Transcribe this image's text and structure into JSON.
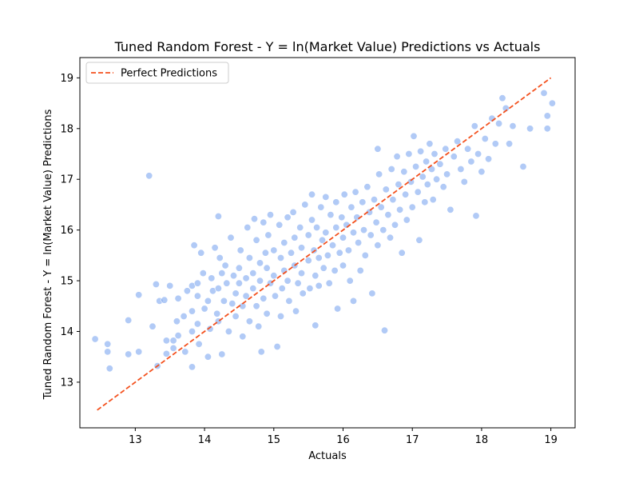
{
  "chart_data": {
    "type": "scatter",
    "title": "Tuned Random Forest - Y = ln(Market Value) Predictions vs Actuals",
    "xlabel": "Actuals",
    "ylabel": "Tuned Random Forest - Y = ln(Market Value) Predictions",
    "xlim": [
      12.2,
      19.35
    ],
    "ylim": [
      12.1,
      19.4
    ],
    "xticks": [
      13,
      14,
      15,
      16,
      17,
      18,
      19
    ],
    "yticks": [
      13,
      14,
      15,
      16,
      17,
      18,
      19
    ],
    "grid": false,
    "legend": {
      "position": "top-left",
      "entries": [
        "Perfect Predictions"
      ]
    },
    "colors": {
      "points": "#6495ED",
      "reference_line": "#F4511E"
    },
    "reference_line": {
      "name": "Perfect Predictions",
      "style": "dashed",
      "x": [
        12.45,
        19.0
      ],
      "y": [
        12.45,
        19.0
      ]
    },
    "series": [
      {
        "name": "",
        "points": [
          [
            12.42,
            13.85
          ],
          [
            12.6,
            13.75
          ],
          [
            12.6,
            13.6
          ],
          [
            12.63,
            13.27
          ],
          [
            12.9,
            14.22
          ],
          [
            12.9,
            13.55
          ],
          [
            13.05,
            14.72
          ],
          [
            13.05,
            13.6
          ],
          [
            13.2,
            17.07
          ],
          [
            13.25,
            14.1
          ],
          [
            13.3,
            14.93
          ],
          [
            13.32,
            13.32
          ],
          [
            13.35,
            14.6
          ],
          [
            13.42,
            14.62
          ],
          [
            13.45,
            13.82
          ],
          [
            13.45,
            13.56
          ],
          [
            13.5,
            14.9
          ],
          [
            13.55,
            13.82
          ],
          [
            13.55,
            13.67
          ],
          [
            13.6,
            14.2
          ],
          [
            13.62,
            14.65
          ],
          [
            13.62,
            13.92
          ],
          [
            13.7,
            14.3
          ],
          [
            13.72,
            13.6
          ],
          [
            13.75,
            14.8
          ],
          [
            13.82,
            14.9
          ],
          [
            13.82,
            14.4
          ],
          [
            13.82,
            14.0
          ],
          [
            13.82,
            13.3
          ],
          [
            13.85,
            15.7
          ],
          [
            13.9,
            14.95
          ],
          [
            13.9,
            14.7
          ],
          [
            13.9,
            14.15
          ],
          [
            13.92,
            13.75
          ],
          [
            13.95,
            15.55
          ],
          [
            13.98,
            15.15
          ],
          [
            14.0,
            14.45
          ],
          [
            14.05,
            14.6
          ],
          [
            14.05,
            13.5
          ],
          [
            14.08,
            14.05
          ],
          [
            14.1,
            15.05
          ],
          [
            14.12,
            14.8
          ],
          [
            14.15,
            15.65
          ],
          [
            14.18,
            14.35
          ],
          [
            14.2,
            16.27
          ],
          [
            14.2,
            14.85
          ],
          [
            14.2,
            14.2
          ],
          [
            14.22,
            15.45
          ],
          [
            14.25,
            15.15
          ],
          [
            14.25,
            13.55
          ],
          [
            14.28,
            14.6
          ],
          [
            14.3,
            15.3
          ],
          [
            14.32,
            14.95
          ],
          [
            14.35,
            14.0
          ],
          [
            14.38,
            15.85
          ],
          [
            14.4,
            14.55
          ],
          [
            14.42,
            15.1
          ],
          [
            14.45,
            14.75
          ],
          [
            14.45,
            14.3
          ],
          [
            14.5,
            15.25
          ],
          [
            14.5,
            14.95
          ],
          [
            14.52,
            15.6
          ],
          [
            14.55,
            14.5
          ],
          [
            14.55,
            13.9
          ],
          [
            14.6,
            15.05
          ],
          [
            14.6,
            14.7
          ],
          [
            14.62,
            16.05
          ],
          [
            14.65,
            15.45
          ],
          [
            14.65,
            14.2
          ],
          [
            14.7,
            15.15
          ],
          [
            14.7,
            14.85
          ],
          [
            14.72,
            16.22
          ],
          [
            14.75,
            15.8
          ],
          [
            14.75,
            14.5
          ],
          [
            14.78,
            14.1
          ],
          [
            14.8,
            15.35
          ],
          [
            14.8,
            15.0
          ],
          [
            14.82,
            13.6
          ],
          [
            14.85,
            16.15
          ],
          [
            14.85,
            14.65
          ],
          [
            14.88,
            15.55
          ],
          [
            14.9,
            15.25
          ],
          [
            14.9,
            14.35
          ],
          [
            14.92,
            15.9
          ],
          [
            14.95,
            16.3
          ],
          [
            14.95,
            14.95
          ],
          [
            15.0,
            15.6
          ],
          [
            15.0,
            15.1
          ],
          [
            15.02,
            14.7
          ],
          [
            15.05,
            13.7
          ],
          [
            15.08,
            16.1
          ],
          [
            15.1,
            15.45
          ],
          [
            15.1,
            14.3
          ],
          [
            15.12,
            14.85
          ],
          [
            15.15,
            15.75
          ],
          [
            15.15,
            15.2
          ],
          [
            15.2,
            16.25
          ],
          [
            15.2,
            15.0
          ],
          [
            15.22,
            14.6
          ],
          [
            15.25,
            15.55
          ],
          [
            15.28,
            16.35
          ],
          [
            15.3,
            15.85
          ],
          [
            15.3,
            15.3
          ],
          [
            15.32,
            14.4
          ],
          [
            15.35,
            14.95
          ],
          [
            15.38,
            16.05
          ],
          [
            15.4,
            15.65
          ],
          [
            15.4,
            15.15
          ],
          [
            15.42,
            14.75
          ],
          [
            15.45,
            16.5
          ],
          [
            15.5,
            15.9
          ],
          [
            15.5,
            15.4
          ],
          [
            15.52,
            14.85
          ],
          [
            15.55,
            16.7
          ],
          [
            15.55,
            16.2
          ],
          [
            15.58,
            15.6
          ],
          [
            15.6,
            15.1
          ],
          [
            15.6,
            14.12
          ],
          [
            15.62,
            16.05
          ],
          [
            15.65,
            15.45
          ],
          [
            15.65,
            14.9
          ],
          [
            15.68,
            16.45
          ],
          [
            15.7,
            15.8
          ],
          [
            15.72,
            15.25
          ],
          [
            15.75,
            16.65
          ],
          [
            15.75,
            15.95
          ],
          [
            15.78,
            15.5
          ],
          [
            15.8,
            14.95
          ],
          [
            15.82,
            16.3
          ],
          [
            15.85,
            15.7
          ],
          [
            15.88,
            15.2
          ],
          [
            15.9,
            16.55
          ],
          [
            15.9,
            16.05
          ],
          [
            15.92,
            14.45
          ],
          [
            15.95,
            15.55
          ],
          [
            15.98,
            16.25
          ],
          [
            16.0,
            15.85
          ],
          [
            16.0,
            15.3
          ],
          [
            16.02,
            16.7
          ],
          [
            16.05,
            16.1
          ],
          [
            16.08,
            15.6
          ],
          [
            16.1,
            15.0
          ],
          [
            16.12,
            16.45
          ],
          [
            16.15,
            15.95
          ],
          [
            16.15,
            14.6
          ],
          [
            16.18,
            16.75
          ],
          [
            16.2,
            16.25
          ],
          [
            16.22,
            15.75
          ],
          [
            16.25,
            15.2
          ],
          [
            16.28,
            16.55
          ],
          [
            16.3,
            16.0
          ],
          [
            16.32,
            15.5
          ],
          [
            16.35,
            16.85
          ],
          [
            16.38,
            16.35
          ],
          [
            16.4,
            15.9
          ],
          [
            16.42,
            14.75
          ],
          [
            16.45,
            16.6
          ],
          [
            16.48,
            16.15
          ],
          [
            16.5,
            17.6
          ],
          [
            16.5,
            15.7
          ],
          [
            16.52,
            17.1
          ],
          [
            16.55,
            16.45
          ],
          [
            16.58,
            16.0
          ],
          [
            16.6,
            14.02
          ],
          [
            16.62,
            16.8
          ],
          [
            16.65,
            16.3
          ],
          [
            16.68,
            15.85
          ],
          [
            16.7,
            17.2
          ],
          [
            16.72,
            16.6
          ],
          [
            16.75,
            16.1
          ],
          [
            16.78,
            17.45
          ],
          [
            16.8,
            16.9
          ],
          [
            16.82,
            16.4
          ],
          [
            16.85,
            15.55
          ],
          [
            16.88,
            17.15
          ],
          [
            16.9,
            16.7
          ],
          [
            16.92,
            16.2
          ],
          [
            16.95,
            17.5
          ],
          [
            16.98,
            16.95
          ],
          [
            17.0,
            16.45
          ],
          [
            17.02,
            17.85
          ],
          [
            17.05,
            17.25
          ],
          [
            17.08,
            16.75
          ],
          [
            17.1,
            15.8
          ],
          [
            17.12,
            17.55
          ],
          [
            17.15,
            17.05
          ],
          [
            17.18,
            16.55
          ],
          [
            17.2,
            17.35
          ],
          [
            17.22,
            16.9
          ],
          [
            17.25,
            17.7
          ],
          [
            17.28,
            17.2
          ],
          [
            17.3,
            16.6
          ],
          [
            17.32,
            17.5
          ],
          [
            17.35,
            17.0
          ],
          [
            17.4,
            17.3
          ],
          [
            17.45,
            16.85
          ],
          [
            17.48,
            17.6
          ],
          [
            17.5,
            17.1
          ],
          [
            17.55,
            16.4
          ],
          [
            17.6,
            17.45
          ],
          [
            17.65,
            17.75
          ],
          [
            17.7,
            17.2
          ],
          [
            17.75,
            16.95
          ],
          [
            17.8,
            17.6
          ],
          [
            17.85,
            17.35
          ],
          [
            17.9,
            18.05
          ],
          [
            17.92,
            16.28
          ],
          [
            17.95,
            17.5
          ],
          [
            18.0,
            17.15
          ],
          [
            18.05,
            17.8
          ],
          [
            18.1,
            17.4
          ],
          [
            18.15,
            18.2
          ],
          [
            18.2,
            17.7
          ],
          [
            18.25,
            18.1
          ],
          [
            18.3,
            18.6
          ],
          [
            18.35,
            18.4
          ],
          [
            18.4,
            17.7
          ],
          [
            18.45,
            18.05
          ],
          [
            18.6,
            17.25
          ],
          [
            18.7,
            18.0
          ],
          [
            18.9,
            18.7
          ],
          [
            18.95,
            18.25
          ],
          [
            18.95,
            18.0
          ],
          [
            19.02,
            18.5
          ]
        ]
      }
    ]
  }
}
